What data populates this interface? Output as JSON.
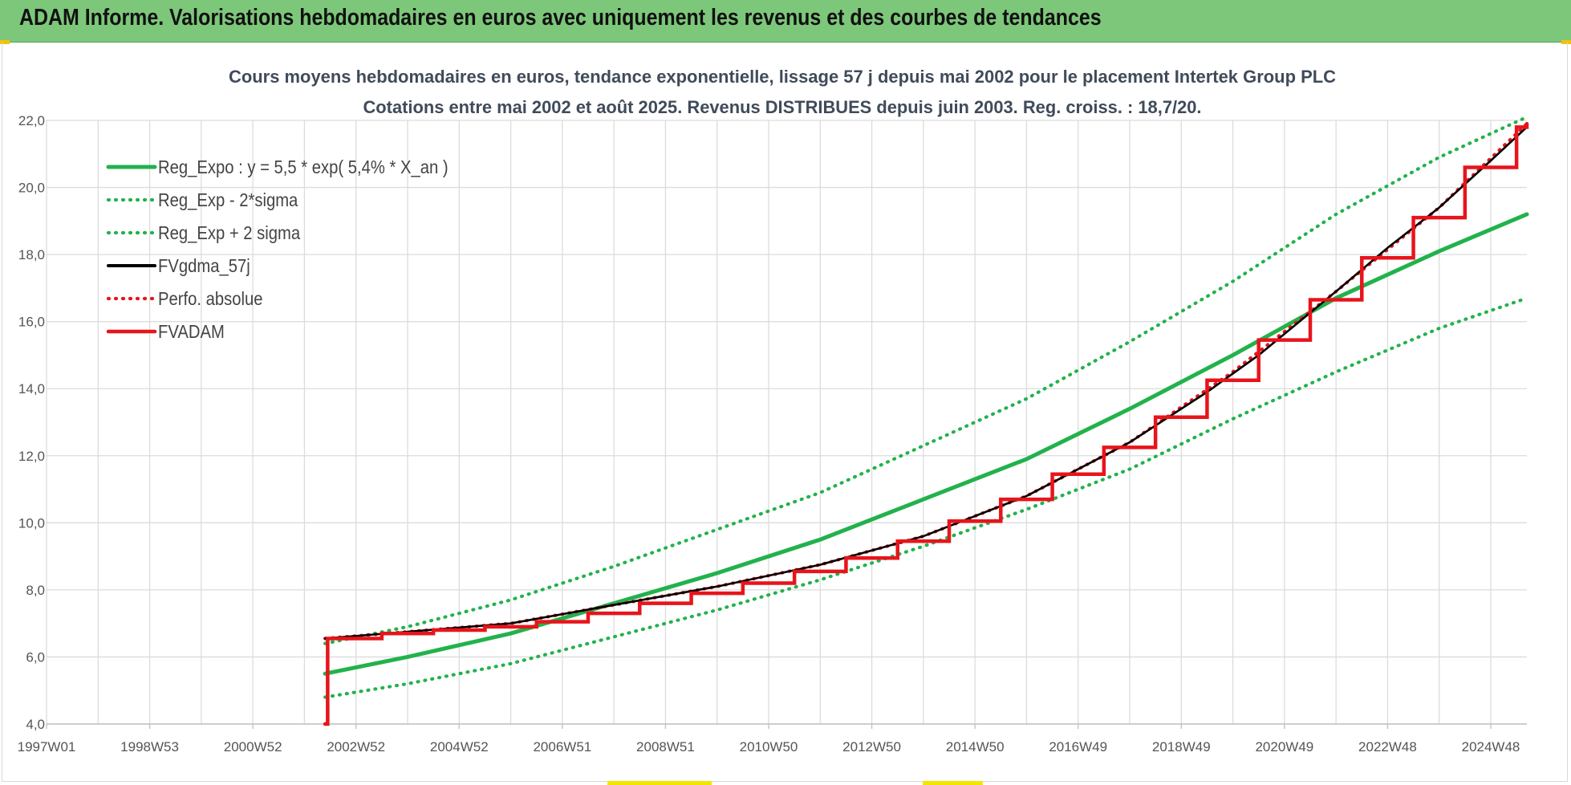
{
  "banner": {
    "title": "ADAM Informe. Valorisations hebdomadaires en euros avec uniquement les revenus et des courbes de tendances"
  },
  "colors": {
    "banner_bg": "#7dc77a",
    "regression": "#22b24c",
    "fv_smooth": "#000000",
    "fvadam": "#e8141b",
    "perfo": "#e8141b",
    "grid": "#dcdcdc"
  },
  "chart_data": {
    "type": "line",
    "title": "Cours moyens hebdomadaires en euros, tendance exponentielle, lissage 57 j depuis mai 2002 pour le placement Intertek Group PLC",
    "subtitle": "Cotations entre mai 2002 et août 2025.  Revenus DISTRIBUES depuis juin 2003. Reg. croiss. : 18,7/20.",
    "xlabel": "",
    "ylabel": "",
    "x_ticks": [
      "1997W01",
      "1998W53",
      "2000W52",
      "2002W52",
      "2004W52",
      "2006W51",
      "2008W51",
      "2010W50",
      "2012W50",
      "2014W50",
      "2016W49",
      "2018W49",
      "2020W49",
      "2022W48",
      "2024W48"
    ],
    "xlim": [
      1997.0,
      2025.7
    ],
    "ylim": [
      4,
      22
    ],
    "y_ticks": [
      "4,0",
      "6,0",
      "8,0",
      "10,0",
      "12,0",
      "14,0",
      "16,0",
      "18,0",
      "20,0",
      "22,0"
    ],
    "grid": true,
    "legend_position": "top-left",
    "legend": [
      {
        "label": "Reg_Expo : y = 5,5 * exp( 5,4% *  X_an )",
        "style": "solid-thick",
        "color": "#22b24c"
      },
      {
        "label": "Reg_Exp - 2*sigma",
        "style": "dotted",
        "color": "#22b24c"
      },
      {
        "label": "Reg_Exp + 2 sigma",
        "style": "dotted",
        "color": "#22b24c"
      },
      {
        "label": "FVgdma_57j",
        "style": "solid",
        "color": "#000000"
      },
      {
        "label": "Perfo. absolue",
        "style": "dotted",
        "color": "#e8141b"
      },
      {
        "label": "FVADAM",
        "style": "solid-thick",
        "color": "#e8141b"
      }
    ],
    "series": [
      {
        "name": "Reg_Expo : y = 5,5 * exp( 5,4% *  X_an )",
        "x": [
          2002.4,
          2004.0,
          2006.0,
          2008.0,
          2010.0,
          2012.0,
          2014.0,
          2016.0,
          2018.0,
          2020.0,
          2022.0,
          2024.0,
          2025.7
        ],
        "values": [
          5.5,
          6.0,
          6.7,
          7.6,
          8.5,
          9.5,
          10.7,
          11.9,
          13.4,
          15.0,
          16.7,
          18.1,
          19.2
        ]
      },
      {
        "name": "Reg_Exp - 2*sigma",
        "x": [
          2002.4,
          2004.0,
          2006.0,
          2008.0,
          2010.0,
          2012.0,
          2014.0,
          2016.0,
          2018.0,
          2020.0,
          2022.0,
          2024.0,
          2025.7
        ],
        "values": [
          4.8,
          5.2,
          5.8,
          6.6,
          7.4,
          8.3,
          9.3,
          10.4,
          11.6,
          13.1,
          14.5,
          15.8,
          16.7
        ]
      },
      {
        "name": "Reg_Exp + 2 sigma",
        "x": [
          2002.4,
          2004.0,
          2006.0,
          2008.0,
          2010.0,
          2012.0,
          2014.0,
          2016.0,
          2018.0,
          2020.0,
          2022.0,
          2024.0,
          2025.7
        ],
        "values": [
          6.4,
          6.9,
          7.7,
          8.7,
          9.8,
          10.9,
          12.3,
          13.7,
          15.4,
          17.2,
          19.2,
          20.9,
          22.1
        ]
      },
      {
        "name": "FVgdma_57j",
        "x": [
          2002.4,
          2004.0,
          2006.0,
          2008.0,
          2010.0,
          2012.0,
          2014.0,
          2016.0,
          2018.0,
          2019.5,
          2020.5,
          2022.0,
          2023.0,
          2024.0,
          2025.0,
          2025.7
        ],
        "values": [
          6.55,
          6.75,
          7.0,
          7.55,
          8.1,
          8.75,
          9.6,
          10.8,
          12.4,
          13.9,
          15.0,
          16.9,
          18.2,
          19.4,
          20.8,
          21.8
        ]
      },
      {
        "name": "Perfo. absolue",
        "x": [
          2002.4,
          2004.0,
          2006.0,
          2008.0,
          2010.0,
          2012.0,
          2014.0,
          2016.0,
          2018.0,
          2020.0,
          2022.0,
          2024.0,
          2025.7
        ],
        "values": [
          6.55,
          6.75,
          7.0,
          7.55,
          8.1,
          8.75,
          9.6,
          10.8,
          12.4,
          14.5,
          16.9,
          19.4,
          21.9
        ]
      },
      {
        "name": "FVADAM",
        "x": [
          2002.4,
          2002.45,
          2003.5,
          2004.5,
          2005.5,
          2006.5,
          2007.5,
          2008.5,
          2009.5,
          2010.5,
          2011.5,
          2012.5,
          2013.5,
          2014.5,
          2015.5,
          2016.5,
          2017.5,
          2018.5,
          2019.5,
          2020.5,
          2021.5,
          2022.5,
          2023.5,
          2024.5,
          2025.5,
          2025.7
        ],
        "values": [
          4.0,
          6.55,
          6.7,
          6.8,
          6.9,
          7.05,
          7.3,
          7.6,
          7.9,
          8.2,
          8.55,
          8.95,
          9.45,
          10.05,
          10.7,
          11.45,
          12.25,
          13.15,
          14.25,
          15.45,
          16.65,
          17.9,
          19.1,
          20.6,
          21.8,
          21.9
        ]
      }
    ]
  }
}
